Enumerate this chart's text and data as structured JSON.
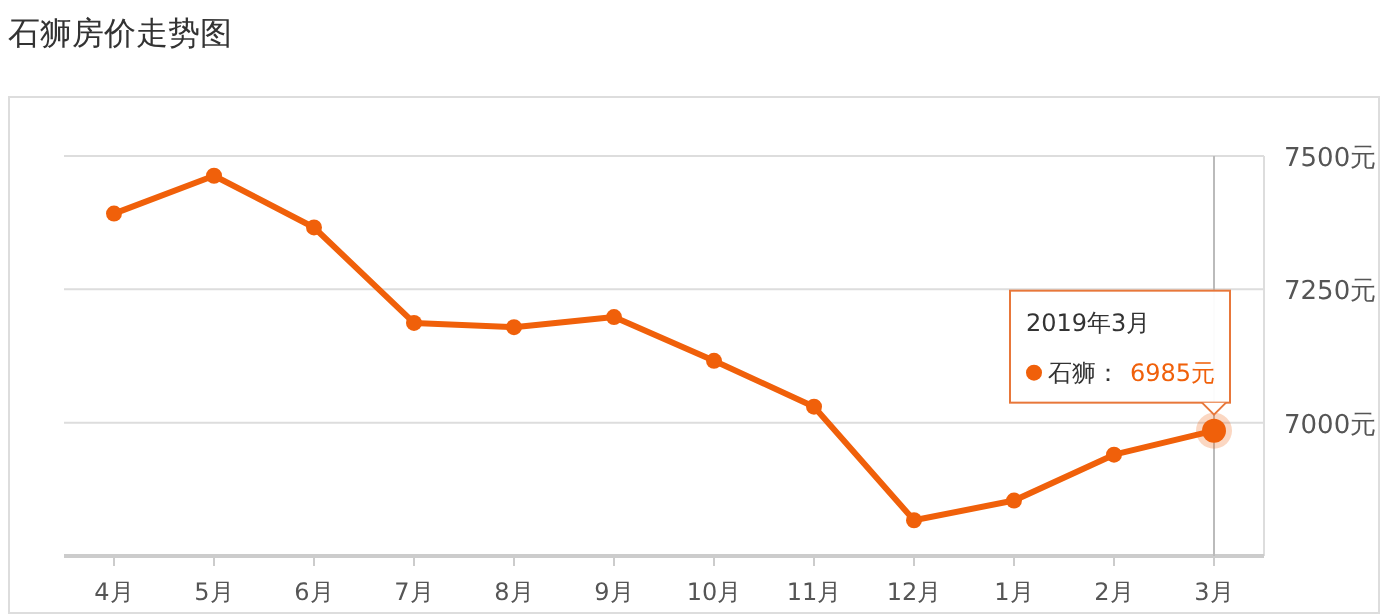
{
  "chart_data": {
    "type": "line",
    "title": "石狮房价走势图",
    "categories": [
      "4月",
      "5月",
      "6月",
      "7月",
      "8月",
      "9月",
      "10月",
      "11月",
      "12月",
      "1月",
      "2月",
      "3月"
    ],
    "series": [
      {
        "name": "石狮：",
        "color": "#f0600a",
        "values": [
          7392,
          7463,
          7366,
          7187,
          7179,
          7198,
          7116,
          7030,
          6817,
          6854,
          6940,
          6985
        ],
        "value_labels": [
          null,
          null,
          null,
          null,
          null,
          null,
          null,
          null,
          null,
          null,
          null,
          "6985元"
        ]
      }
    ],
    "ylim": [
      6750,
      7500
    ],
    "yticks": [
      {
        "value": 7000,
        "label": "7000元"
      },
      {
        "value": 7250,
        "label": "7250元"
      },
      {
        "value": 7500,
        "label": "7500元"
      }
    ],
    "grid": "y",
    "marker": "circle",
    "line_style": "solid",
    "legend": "right",
    "ref_lines": [
      {
        "axis": "x",
        "value": "3月",
        "color": "#bbbbbb"
      }
    ],
    "annotations": [
      "2019年3月"
    ]
  }
}
